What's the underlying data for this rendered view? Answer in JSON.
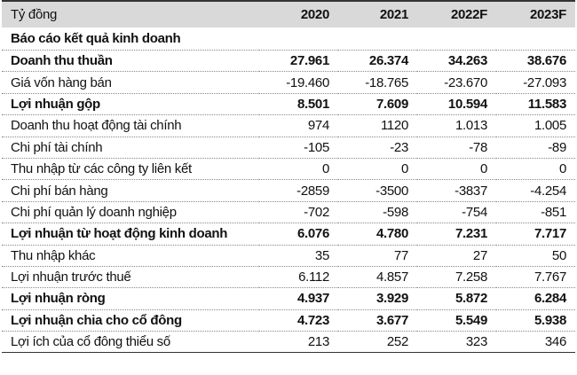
{
  "table": {
    "header": [
      "Tỷ đồng",
      "2020",
      "2021",
      "2022F",
      "2023F"
    ],
    "section": "Báo cáo kết quả kinh doanh",
    "rows": [
      {
        "label": "Doanh thu thuần",
        "values": [
          "27.961",
          "26.374",
          "34.263",
          "38.676"
        ],
        "bold": true
      },
      {
        "label": "Giá vốn hàng bán",
        "values": [
          "-19.460",
          "-18.765",
          "-23.670",
          "-27.093"
        ]
      },
      {
        "label": "Lợi nhuận gộp",
        "values": [
          "8.501",
          "7.609",
          "10.594",
          "11.583"
        ],
        "bold": true
      },
      {
        "label": "Doanh thu hoạt động tài chính",
        "values": [
          "974",
          "1120",
          "1.013",
          "1.005"
        ]
      },
      {
        "label": "Chi phí tài chính",
        "values": [
          "-105",
          "-23",
          "-78",
          "-89"
        ]
      },
      {
        "label": "Thu nhập từ các công ty liên kết",
        "values": [
          "0",
          "0",
          "0",
          "0"
        ]
      },
      {
        "label": "Chi phí bán hàng",
        "values": [
          "-2859",
          "-3500",
          "-3837",
          "-4.254"
        ]
      },
      {
        "label": "Chi phí quản lý doanh nghiệp",
        "values": [
          "-702",
          "-598",
          "-754",
          "-851"
        ]
      },
      {
        "label": "Lợi nhuận từ hoạt động kinh doanh",
        "values": [
          "6.076",
          "4.780",
          "7.231",
          "7.717"
        ],
        "bold": true
      },
      {
        "label": "Thu nhập khác",
        "values": [
          "35",
          "77",
          "27",
          "50"
        ]
      },
      {
        "label": "Lợi nhuận trước thuế",
        "values": [
          "6.112",
          "4.857",
          "7.258",
          "7.767"
        ]
      },
      {
        "label": "Lợi nhuận ròng",
        "values": [
          "4.937",
          "3.929",
          "5.872",
          "6.284"
        ],
        "bold": true
      },
      {
        "label": "Lợi nhuận chia cho cổ đông",
        "values": [
          "4.723",
          "3.677",
          "5.549",
          "5.938"
        ],
        "bold": true
      },
      {
        "label": "Lợi ích của cổ đông thiểu số",
        "values": [
          "213",
          "252",
          "323",
          "346"
        ]
      }
    ]
  }
}
